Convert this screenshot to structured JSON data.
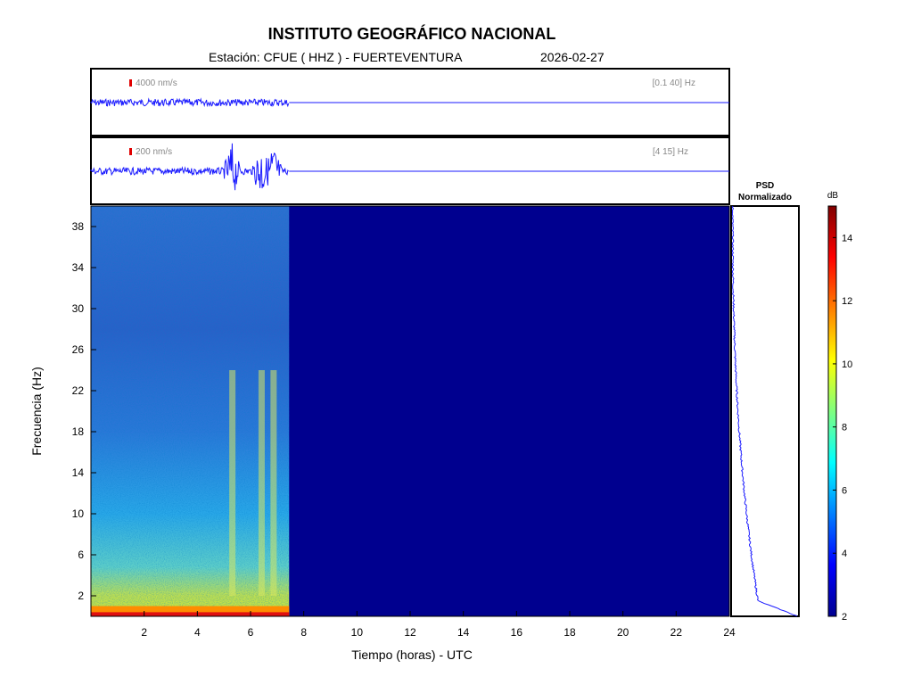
{
  "header": {
    "title": "INSTITUTO GEOGRÁFICO NACIONAL",
    "station": "Estación:  CFUE ( HHZ ) - FUERTEVENTURA",
    "date": "2026-02-27"
  },
  "chart_data": [
    {
      "type": "line",
      "panel": "waveform-broadband",
      "scale_label": "4000 nm/s",
      "filter_label": "[0.1 40] Hz",
      "xlim": [
        0,
        24
      ],
      "data_end_hour": 7.45,
      "color": "#1a1aff"
    },
    {
      "type": "line",
      "panel": "waveform-filtered",
      "scale_label": "200 nm/s",
      "filter_label": "[4 15] Hz",
      "xlim": [
        0,
        24
      ],
      "data_end_hour": 7.45,
      "bursts_hours": [
        5.3,
        6.4,
        6.85
      ],
      "color": "#1a1aff"
    },
    {
      "type": "heatmap",
      "panel": "spectrogram",
      "xlabel": "Tiempo (horas) - UTC",
      "ylabel": "Frecuencia  (Hz)",
      "xlim": [
        0,
        24
      ],
      "ylim": [
        0,
        40
      ],
      "x_ticks": [
        "2",
        "4",
        "6",
        "8",
        "10",
        "12",
        "14",
        "16",
        "18",
        "20",
        "22",
        "24"
      ],
      "y_ticks": [
        "2",
        "6",
        "10",
        "14",
        "18",
        "22",
        "26",
        "30",
        "34",
        "38"
      ],
      "data_end_hour": 7.45,
      "colorscale": "jet",
      "colorbar": {
        "label": "dB",
        "range": [
          2,
          15
        ],
        "ticks": [
          "2",
          "4",
          "6",
          "8",
          "10",
          "12",
          "14"
        ]
      }
    },
    {
      "type": "line",
      "panel": "psd",
      "title_lines": [
        "PSD",
        "Normalizado"
      ],
      "ylim": [
        0,
        40
      ],
      "color": "#1a1aff"
    }
  ]
}
